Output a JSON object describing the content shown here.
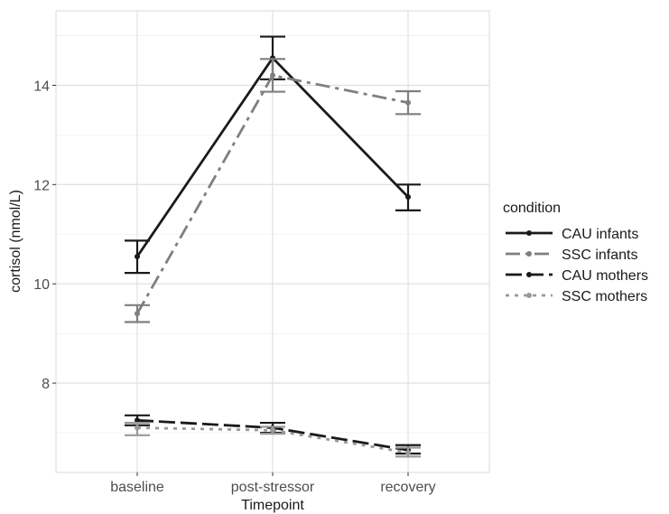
{
  "chart_data": {
    "type": "line",
    "xlabel": "Timepoint",
    "ylabel": "cortisol (nmol/L)",
    "categories": [
      "baseline",
      "post-stressor",
      "recovery"
    ],
    "ylim": [
      6.2,
      15.5
    ],
    "y_ticks": [
      8,
      10,
      12,
      14
    ],
    "y_tick_labels": [
      "8",
      "10",
      "12",
      "14"
    ],
    "grid": true,
    "legend": {
      "title": "condition",
      "position": "right"
    },
    "series": [
      {
        "name": "CAU infants",
        "values": [
          10.55,
          14.55,
          11.75
        ],
        "error_low": [
          10.22,
          14.12,
          11.48
        ],
        "error_high": [
          10.87,
          14.98,
          12.0
        ],
        "color": "#1a1a1a",
        "dash": "solid"
      },
      {
        "name": "SSC infants",
        "values": [
          9.4,
          14.2,
          13.65
        ],
        "error_low": [
          9.23,
          13.87,
          13.42
        ],
        "error_high": [
          9.57,
          14.53,
          13.88
        ],
        "color": "#7f7f7f",
        "dash": "dashdot"
      },
      {
        "name": "CAU mothers",
        "values": [
          7.25,
          7.1,
          6.65
        ],
        "error_low": [
          7.15,
          7.0,
          6.58
        ],
        "error_high": [
          7.35,
          7.2,
          6.75
        ],
        "color": "#1a1a1a",
        "dash": "longdash"
      },
      {
        "name": "SSC mothers",
        "values": [
          7.1,
          7.05,
          6.6
        ],
        "error_low": [
          6.95,
          6.98,
          6.52
        ],
        "error_high": [
          7.2,
          7.12,
          6.7
        ],
        "color": "#999999",
        "dash": "dotdash"
      }
    ]
  }
}
